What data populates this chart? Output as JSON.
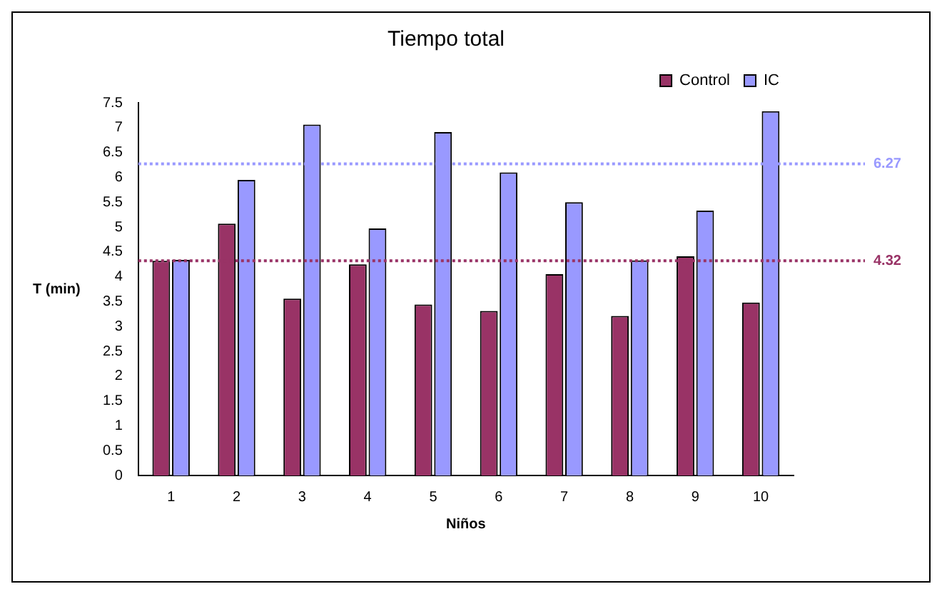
{
  "chart_data": {
    "type": "bar",
    "title": "Tiempo total",
    "xlabel": "Niños",
    "ylabel": "T (min)",
    "categories": [
      "1",
      "2",
      "3",
      "4",
      "5",
      "6",
      "7",
      "8",
      "9",
      "10"
    ],
    "series": [
      {
        "name": "Control",
        "color": "#993366",
        "values": [
          4.32,
          5.07,
          3.56,
          4.25,
          3.44,
          3.31,
          4.05,
          3.21,
          4.41,
          3.48
        ]
      },
      {
        "name": "IC",
        "color": "#9999ff",
        "values": [
          4.34,
          5.95,
          7.06,
          4.97,
          6.91,
          6.1,
          5.5,
          4.33,
          5.33,
          7.33
        ]
      }
    ],
    "ylim": [
      0,
      7.5
    ],
    "yticks": [
      0,
      0.5,
      1,
      1.5,
      2,
      2.5,
      3,
      3.5,
      4,
      4.5,
      5,
      5.5,
      6,
      6.5,
      7,
      7.5
    ],
    "ref_lines": [
      {
        "axis": "y",
        "value": 6.27,
        "label": "6.27",
        "color": "#9999ff",
        "line_style": "dotted"
      },
      {
        "axis": "y",
        "value": 4.32,
        "label": "4.32",
        "color": "#993366",
        "line_style": "dotted"
      }
    ],
    "grid": false,
    "legend": "top right"
  }
}
